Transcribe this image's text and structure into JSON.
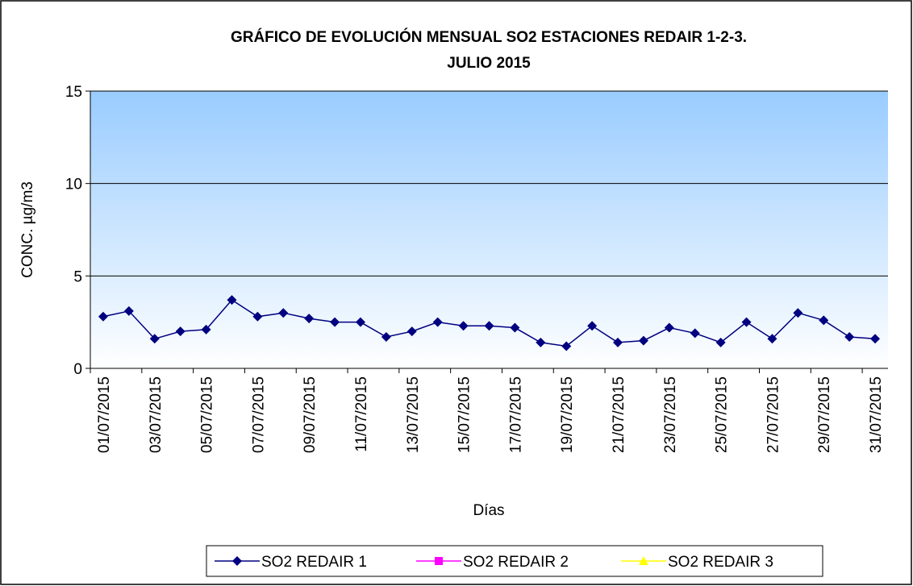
{
  "chart_data": {
    "type": "line",
    "title": [
      "GRÁFICO DE EVOLUCIÓN MENSUAL SO2 ESTACIONES REDAIR 1-2-3.",
      "JULIO 2015"
    ],
    "x_label": "Días",
    "y_label": "CONC. µg/m3",
    "categories": [
      "01/07/2015",
      null,
      "03/07/2015",
      null,
      "05/07/2015",
      null,
      "07/07/2015",
      null,
      "09/07/2015",
      null,
      "11/07/2015",
      null,
      "13/07/2015",
      null,
      "15/07/2015",
      null,
      "17/07/2015",
      null,
      "19/07/2015",
      null,
      "21/07/2015",
      null,
      "23/07/2015",
      null,
      "25/07/2015",
      null,
      "27/07/2015",
      null,
      "29/07/2015",
      null,
      "31/07/2015"
    ],
    "series": [
      {
        "name": "SO2 REDAIR 1",
        "color": "#000080",
        "marker": "diamond",
        "values": [
          2.8,
          3.1,
          1.6,
          2.0,
          2.1,
          3.7,
          2.8,
          3.0,
          2.7,
          2.5,
          2.5,
          1.7,
          2.0,
          2.5,
          2.3,
          2.3,
          2.2,
          1.4,
          1.2,
          2.3,
          1.4,
          1.5,
          2.2,
          1.9,
          1.4,
          2.5,
          1.6,
          3.0,
          2.6,
          1.7,
          1.6
        ]
      },
      {
        "name": "SO2 REDAIR 2",
        "color": "#ff00ff",
        "marker": "square",
        "values": [
          null,
          null,
          null,
          null,
          null,
          null,
          null,
          null,
          null,
          null,
          null,
          null,
          null,
          null,
          null,
          null,
          null,
          null,
          null,
          null,
          null,
          null,
          null,
          null,
          null,
          null,
          null,
          null,
          null,
          null,
          null
        ]
      },
      {
        "name": "SO2 REDAIR 3",
        "color": "#ffff00",
        "marker": "triangle",
        "values": [
          null,
          null,
          null,
          null,
          null,
          null,
          null,
          null,
          null,
          null,
          null,
          null,
          null,
          null,
          null,
          null,
          null,
          null,
          null,
          null,
          null,
          null,
          null,
          null,
          null,
          null,
          null,
          null,
          null,
          null,
          null
        ]
      }
    ],
    "ylim": [
      0,
      15
    ],
    "yticks": [
      0,
      5,
      10,
      15
    ],
    "grid": true,
    "legend": "bottom"
  }
}
